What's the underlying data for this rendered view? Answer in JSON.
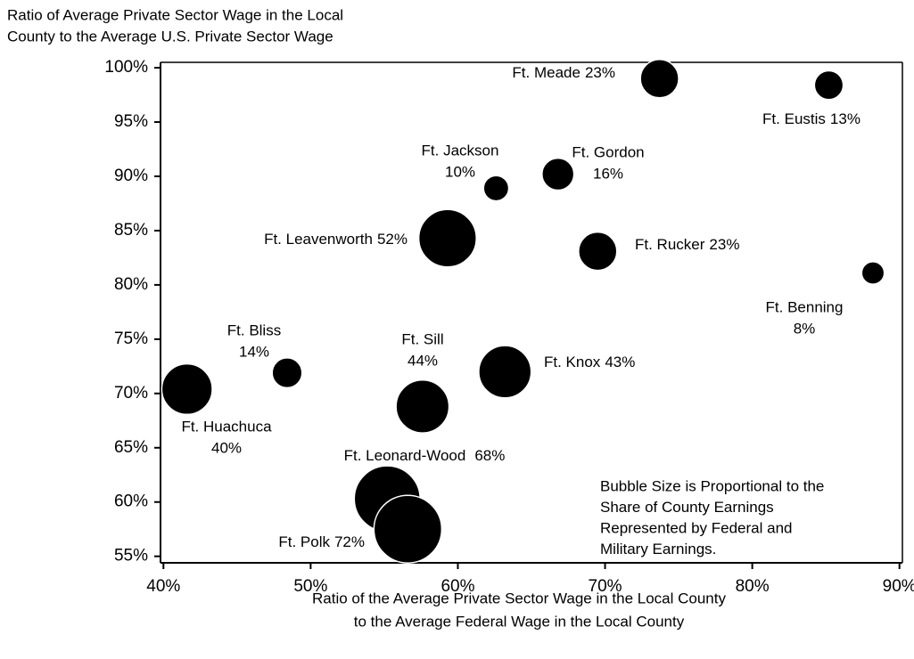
{
  "chart_data": {
    "type": "bubble",
    "y_label": [
      "Ratio of Average Private Sector Wage in the Local",
      "County to the Average  U.S. Private Sector Wage"
    ],
    "x_label": [
      "Ratio of the Average Private Sector Wage in the Local County",
      "to the Average Federal Wage in the Local County"
    ],
    "note": [
      "Bubble Size is Proportional to the",
      "Share of County Earnings",
      "Represented by Federal and",
      "Military Earnings."
    ],
    "color": "#000000",
    "xlim": [
      39.8,
      90.2
    ],
    "ylim": [
      54.4,
      100.5
    ],
    "xticks": [
      {
        "value": 40,
        "label": "40%"
      },
      {
        "value": 50,
        "label": "50%"
      },
      {
        "value": 60,
        "label": "60%"
      },
      {
        "value": 70,
        "label": "70%"
      },
      {
        "value": 80,
        "label": "80%"
      },
      {
        "value": 90,
        "label": "90%"
      }
    ],
    "yticks": [
      {
        "value": 55,
        "label": "55%"
      },
      {
        "value": 60,
        "label": "60%"
      },
      {
        "value": 65,
        "label": "65%"
      },
      {
        "value": 70,
        "label": "70%"
      },
      {
        "value": 75,
        "label": "75%"
      },
      {
        "value": 80,
        "label": "80%"
      },
      {
        "value": 85,
        "label": "85%"
      },
      {
        "value": 90,
        "label": "90%"
      },
      {
        "value": 95,
        "label": "95%"
      },
      {
        "value": 100,
        "label": "100%"
      }
    ],
    "names": [
      "Ft. Meade",
      "Ft. Eustis",
      "Ft. Jackson",
      "Ft. Gordon",
      "Ft. Leavenworth",
      "Ft. Rucker",
      "Ft. Benning",
      "Ft. Bliss",
      "Ft. Huachuca",
      "Ft. Sill",
      "Ft. Knox",
      "Ft. Leonard-Wood",
      "Ft. Polk"
    ],
    "x": [
      73.7,
      85.2,
      62.6,
      66.8,
      59.3,
      69.5,
      88.2,
      48.4,
      41.6,
      57.6,
      63.2,
      55.2,
      56.6
    ],
    "y": [
      99.0,
      98.4,
      88.9,
      90.2,
      84.3,
      83.1,
      81.1,
      71.9,
      70.4,
      68.8,
      72.0,
      60.3,
      57.5
    ],
    "sizes": [
      23,
      13,
      10,
      16,
      52,
      23,
      8,
      14,
      40,
      44,
      43,
      68,
      72
    ],
    "size_labels": [
      "23%",
      "13%",
      "10%",
      "16%",
      "52%",
      "23%",
      "8%",
      "14%",
      "40%",
      "44%",
      "43%",
      "68%",
      "72%"
    ]
  }
}
